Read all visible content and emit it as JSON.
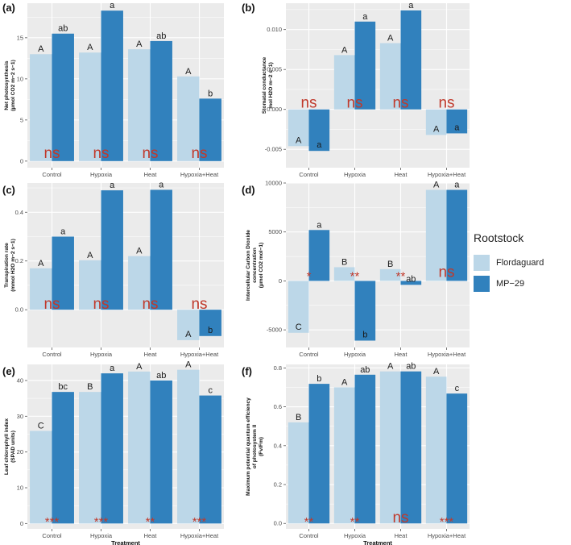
{
  "chart_data": [
    {
      "panel": "(a)",
      "type": "bar",
      "ylabel": "Net photosynthesis\n(µmol CO2 m−2 s−1)",
      "xlabel": "",
      "categories": [
        "Control",
        "Hypoxia",
        "Heat",
        "Hypoxia+Heat"
      ],
      "ylim": [
        -0.8,
        19.2
      ],
      "yticks": [
        0,
        5,
        10,
        15
      ],
      "ytick_labels": [
        "0",
        "5",
        "10",
        "15"
      ],
      "series": [
        {
          "name": "Flordaguard",
          "values": [
            13.0,
            13.2,
            13.6,
            10.3
          ],
          "letters": [
            "A",
            "A",
            "A",
            "A"
          ]
        },
        {
          "name": "MP−29",
          "values": [
            15.5,
            18.3,
            14.6,
            7.6
          ],
          "letters": [
            "ab",
            "a",
            "ab",
            "b"
          ]
        }
      ],
      "sig": [
        "ns",
        "ns",
        "ns",
        "ns"
      ],
      "sig_y": 0.4
    },
    {
      "panel": "(b)",
      "type": "bar",
      "ylabel": "Stomatal conductance\nmol H2O m−2 s−1)",
      "xlabel": "",
      "categories": [
        "Control",
        "Hypoxia",
        "Heat",
        "Hypoxia+Heat"
      ],
      "ylim": [
        -0.0073,
        0.0133
      ],
      "yticks": [
        -0.005,
        0,
        0.005,
        0.01
      ],
      "ytick_labels": [
        "-0.005",
        "0.000",
        "0.005",
        "0.010"
      ],
      "series": [
        {
          "name": "Flordaguard",
          "values": [
            -0.0046,
            0.0068,
            0.0083,
            -0.0032
          ],
          "letters": [
            "A",
            "A",
            "A",
            "A"
          ]
        },
        {
          "name": "MP−29",
          "values": [
            -0.0052,
            0.011,
            0.0124,
            -0.003
          ],
          "letters": [
            "a",
            "a",
            "a",
            "a"
          ]
        }
      ],
      "sig": [
        "ns",
        "ns",
        "ns",
        "ns"
      ],
      "sig_y": 0.0002
    },
    {
      "panel": "(c)",
      "type": "bar",
      "ylabel": "Transpiration rate\n(mmol H2O m−2 s−1)",
      "xlabel": "",
      "categories": [
        "Control",
        "Hypoxia",
        "Heat",
        "Hypoxia+Heat"
      ],
      "ylim": [
        -0.155,
        0.52
      ],
      "yticks": [
        0,
        0.2,
        0.4
      ],
      "ytick_labels": [
        "0.0",
        "0.2",
        "0.4"
      ],
      "series": [
        {
          "name": "Flordaguard",
          "values": [
            0.17,
            0.203,
            0.22,
            -0.125
          ],
          "letters": [
            "A",
            "A",
            "A",
            "A"
          ]
        },
        {
          "name": "MP−29",
          "values": [
            0.3,
            0.49,
            0.492,
            -0.108
          ],
          "letters": [
            "a",
            "a",
            "a",
            "b"
          ]
        }
      ],
      "sig": [
        "ns",
        "ns",
        "ns",
        "ns"
      ],
      "sig_y": 0.004
    },
    {
      "panel": "(d)",
      "type": "bar",
      "ylabel": "Intercellular Carbon Dioxide\nconcentration\n(µmol CO2 mol−1)",
      "xlabel": "",
      "categories": [
        "Control",
        "Hypoxia",
        "Heat",
        "Hypoxia+Heat"
      ],
      "ylim": [
        -6800,
        10000
      ],
      "yticks": [
        -5000,
        0,
        5000,
        10000
      ],
      "ytick_labels": [
        "-5000",
        "0",
        "5000",
        "10000"
      ],
      "series": [
        {
          "name": "Flordaguard",
          "values": [
            -5300,
            1400,
            1200,
            9300
          ],
          "letters": [
            "C",
            "B",
            "B",
            "A"
          ]
        },
        {
          "name": "MP−29",
          "values": [
            5200,
            -6100,
            -400,
            9300
          ],
          "letters": [
            "a",
            "b",
            "ab",
            "a"
          ]
        }
      ],
      "sig": [
        "*",
        "**",
        "**",
        "ns"
      ],
      "sig_y": 400
    },
    {
      "panel": "(e)",
      "type": "bar",
      "ylabel": "Leaf chlorophyll index\n(SPAD units)",
      "xlabel": "Treatment",
      "categories": [
        "Control",
        "Hypoxia",
        "Heat",
        "Hypoxia+Heat"
      ],
      "ylim": [
        -1.5,
        44.5
      ],
      "yticks": [
        0,
        10,
        20,
        30,
        40
      ],
      "ytick_labels": [
        "0",
        "10",
        "20",
        "30",
        "40"
      ],
      "series": [
        {
          "name": "Flordaguard",
          "values": [
            25.9,
            36.8,
            42.5,
            43.0
          ],
          "letters": [
            "C",
            "B",
            "A",
            "A"
          ]
        },
        {
          "name": "MP−29",
          "values": [
            36.8,
            42.0,
            40.0,
            35.8
          ],
          "letters": [
            "bc",
            "a",
            "ab",
            "c"
          ]
        }
      ],
      "sig": [
        "***",
        "***",
        "**",
        "***"
      ],
      "sig_y": 0.3
    },
    {
      "panel": "(f)",
      "type": "bar",
      "ylabel": "Maximum potential quantum efficiency\nof photosystem II\n(Fv/Fm)",
      "xlabel": "Treatment",
      "categories": [
        "Control",
        "Hypoxia",
        "Heat",
        "Hypoxia+Heat"
      ],
      "ylim": [
        -0.028,
        0.818
      ],
      "yticks": [
        0,
        0.2,
        0.4,
        0.6,
        0.8
      ],
      "ytick_labels": [
        "0.0",
        "0.2",
        "0.4",
        "0.6",
        "0.8"
      ],
      "series": [
        {
          "name": "Flordaguard",
          "values": [
            0.52,
            0.7,
            0.782,
            0.755
          ],
          "letters": [
            "B",
            "A",
            "A",
            "A"
          ]
        },
        {
          "name": "MP−29",
          "values": [
            0.718,
            0.765,
            0.782,
            0.668
          ],
          "letters": [
            "b",
            "ab",
            "ab",
            "c"
          ]
        }
      ],
      "sig": [
        "**",
        "**",
        "ns",
        "***"
      ],
      "sig_y": 0.006
    }
  ],
  "legend": {
    "title": "Rootstock",
    "items": [
      {
        "label": "Flordaguard",
        "color": "#bcd7e8"
      },
      {
        "label": "MP−29",
        "color": "#3181bd"
      }
    ]
  },
  "colors": {
    "panel_bg": "#ebebeb",
    "grid": "#ffffff",
    "sig_text": "#c0392b"
  }
}
